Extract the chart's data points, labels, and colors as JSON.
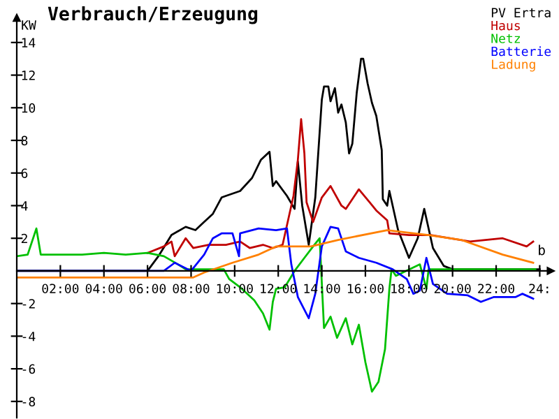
{
  "chart_data": {
    "type": "line",
    "title": "Verbrauch/Erzeugung",
    "ylabel": "KW",
    "xlim": [
      0,
      24.5
    ],
    "ylim": [
      -9,
      15.5
    ],
    "xticks": [
      {
        "value": 2,
        "label": "02:00"
      },
      {
        "value": 4,
        "label": "04:00"
      },
      {
        "value": 6,
        "label": "06:00"
      },
      {
        "value": 8,
        "label": "08:00"
      },
      {
        "value": 10,
        "label": "10:00"
      },
      {
        "value": 12,
        "label": "12:00"
      },
      {
        "value": 14,
        "label": "14:00"
      },
      {
        "value": 16,
        "label": "16:00"
      },
      {
        "value": 18,
        "label": "18:00"
      },
      {
        "value": 20,
        "label": "20:00"
      },
      {
        "value": 22,
        "label": "22:00"
      },
      {
        "value": 24,
        "label": "24:"
      }
    ],
    "yticks": [
      -8,
      -6,
      -4,
      -2,
      2,
      4,
      6,
      8,
      10,
      12,
      14
    ],
    "grid": false,
    "legend": "top right",
    "marker": "none",
    "line_style": "solid",
    "annotations": [
      {
        "text": "b",
        "x": 23.9,
        "y": 0.8
      }
    ],
    "series": [
      {
        "name": "PV Ertra",
        "color": "#000000",
        "x": [
          0,
          6.0,
          6.5,
          7.1,
          7.75,
          8.2,
          8.6,
          9.0,
          9.4,
          9.6,
          10.25,
          10.8,
          11.2,
          11.6,
          11.75,
          11.9,
          12.4,
          12.75,
          12.9,
          13.1,
          13.4,
          13.7,
          14.0,
          14.1,
          14.3,
          14.4,
          14.6,
          14.75,
          14.9,
          15.1,
          15.25,
          15.4,
          15.6,
          15.8,
          15.9,
          16.1,
          16.3,
          16.5,
          16.75,
          16.8,
          17.0,
          17.1,
          17.5,
          18.0,
          18.4,
          18.7,
          19.1,
          19.6,
          20.0,
          24.0
        ],
        "values": [
          0,
          0,
          0.9,
          2.2,
          2.7,
          2.5,
          3.0,
          3.5,
          4.5,
          4.6,
          4.9,
          5.7,
          6.8,
          7.3,
          5.2,
          5.5,
          4.6,
          3.8,
          6.7,
          4.0,
          1.6,
          4.5,
          10.5,
          11.3,
          11.3,
          10.4,
          11.2,
          9.7,
          10.2,
          9.1,
          7.2,
          7.8,
          10.9,
          13.0,
          13.0,
          11.5,
          10.3,
          9.5,
          7.4,
          4.4,
          4.0,
          4.9,
          2.5,
          0.8,
          2.0,
          3.8,
          1.4,
          0.3,
          0.1,
          0.1
        ]
      },
      {
        "name": "Haus",
        "color": "#c00000",
        "x": [
          6.0,
          6.75,
          7.1,
          7.25,
          7.75,
          8.1,
          8.8,
          9.6,
          10.25,
          10.7,
          11.3,
          11.75,
          12.2,
          12.7,
          12.9,
          13.05,
          13.2,
          13.3,
          13.6,
          14.0,
          14.4,
          14.9,
          15.1,
          15.7,
          16.2,
          16.5,
          17.0,
          17.1,
          18.0,
          19.0,
          20.8,
          22.3,
          23.4,
          23.7
        ],
        "values": [
          1.1,
          1.5,
          1.8,
          0.9,
          2.0,
          1.4,
          1.6,
          1.6,
          1.8,
          1.4,
          1.6,
          1.4,
          1.6,
          4.6,
          6.8,
          9.3,
          7.2,
          4.2,
          3.0,
          4.5,
          5.2,
          4.0,
          3.8,
          5.0,
          4.2,
          3.7,
          3.1,
          2.3,
          2.2,
          2.2,
          1.8,
          2.0,
          1.5,
          1.8
        ]
      },
      {
        "name": "Netz",
        "color": "#00c000",
        "x": [
          0,
          0.5,
          0.9,
          1.1,
          2.0,
          3.0,
          4.0,
          5.0,
          6.0,
          6.75,
          7.4,
          7.75,
          9.5,
          9.75,
          10.25,
          10.9,
          11.3,
          11.6,
          11.75,
          11.9,
          12.3,
          12.75,
          13.2,
          13.6,
          13.9,
          14.1,
          14.4,
          14.7,
          15.1,
          15.4,
          15.7,
          16.0,
          16.3,
          16.6,
          16.9,
          17.1,
          17.2,
          17.4,
          18.5,
          18.8,
          18.9,
          23.8
        ],
        "values": [
          0.9,
          1.0,
          2.6,
          1.0,
          1.0,
          1.0,
          1.1,
          1.0,
          1.1,
          0.9,
          0.4,
          0.1,
          0.1,
          -0.5,
          -1.0,
          -1.8,
          -2.6,
          -3.6,
          -1.9,
          -1.1,
          -1.0,
          0.0,
          0.8,
          1.5,
          2.0,
          -3.5,
          -2.8,
          -4.1,
          -2.9,
          -4.5,
          -3.3,
          -5.6,
          -7.4,
          -6.8,
          -4.8,
          -1.1,
          0.1,
          -0.3,
          0.4,
          -1.1,
          0.1,
          0.1
        ]
      },
      {
        "name": "Batterie",
        "color": "#0000ff",
        "x": [
          0,
          6.75,
          7.25,
          8.0,
          8.6,
          9.0,
          9.4,
          9.9,
          10.2,
          10.25,
          11.1,
          11.9,
          12.4,
          12.6,
          12.9,
          13.4,
          13.7,
          14.0,
          14.4,
          14.75,
          15.1,
          15.7,
          16.5,
          17.25,
          17.9,
          18.2,
          18.5,
          18.8,
          19.1,
          19.75,
          20.7,
          21.3,
          21.9,
          22.9,
          23.2,
          23.7
        ],
        "values": [
          0,
          0,
          0.5,
          0,
          1.0,
          2.0,
          2.3,
          2.3,
          0.9,
          2.3,
          2.6,
          2.5,
          2.6,
          0.4,
          -1.6,
          -2.9,
          -1.4,
          1.5,
          2.7,
          2.6,
          1.2,
          0.8,
          0.5,
          0.1,
          -0.5,
          -1.4,
          -1.2,
          0.8,
          -0.8,
          -1.4,
          -1.5,
          -1.9,
          -1.6,
          -1.6,
          -1.4,
          -1.7
        ]
      },
      {
        "name": "Ladung",
        "color": "#ff8000",
        "x": [
          0,
          8.1,
          8.6,
          9.9,
          11.1,
          11.9,
          13.5,
          14.75,
          17.0,
          18.9,
          20.4,
          22.3,
          23.7
        ],
        "values": [
          -0.4,
          -0.4,
          -0.1,
          0.5,
          1.0,
          1.5,
          1.5,
          1.9,
          2.5,
          2.2,
          1.9,
          1.0,
          0.5
        ]
      }
    ]
  }
}
